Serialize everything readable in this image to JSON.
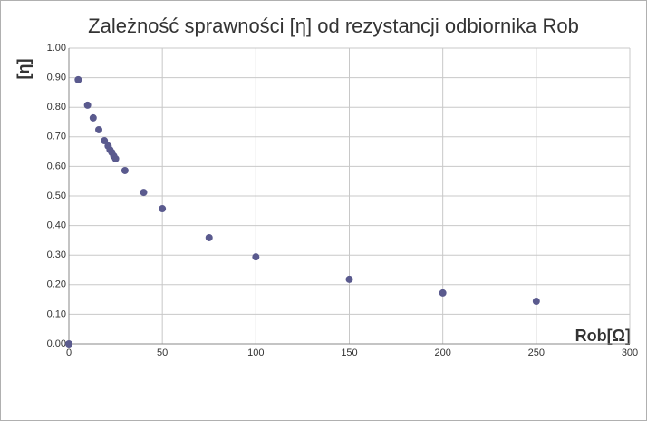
{
  "chart_data": {
    "type": "scatter",
    "title": "Zależność sprawności [η] od rezystancji odbiornika Rob",
    "x_label": "Rob[Ω]",
    "y_label": "[η]",
    "series": [
      {
        "color": "#5a5a8e",
        "x": [
          0,
          5,
          10,
          13,
          16,
          19,
          21,
          22,
          23,
          24,
          25,
          30,
          40,
          50,
          75,
          100,
          150,
          200,
          250
        ],
        "values": [
          0,
          0.893,
          0.807,
          0.764,
          0.724,
          0.687,
          0.669,
          0.656,
          0.647,
          0.635,
          0.626,
          0.586,
          0.512,
          0.457,
          0.359,
          0.294,
          0.218,
          0.172,
          0.144
        ]
      }
    ],
    "xlim": [
      0,
      300
    ],
    "xticks": [
      0,
      50,
      100,
      150,
      200,
      250,
      300
    ],
    "ylim": [
      0,
      1
    ],
    "yticks": [
      {
        "value": 0,
        "label": "0.00"
      },
      {
        "value": 0.1,
        "label": "0.10"
      },
      {
        "value": 0.2,
        "label": "0.20"
      },
      {
        "value": 0.3,
        "label": "0.30"
      },
      {
        "value": 0.4,
        "label": "0.40"
      },
      {
        "value": 0.5,
        "label": "0.50"
      },
      {
        "value": 0.6,
        "label": "0.60"
      },
      {
        "value": 0.7,
        "label": "0.70"
      },
      {
        "value": 0.8,
        "label": "0.80"
      },
      {
        "value": 0.9,
        "label": "0.90"
      },
      {
        "value": 1,
        "label": "1.00"
      }
    ],
    "grid": true
  }
}
